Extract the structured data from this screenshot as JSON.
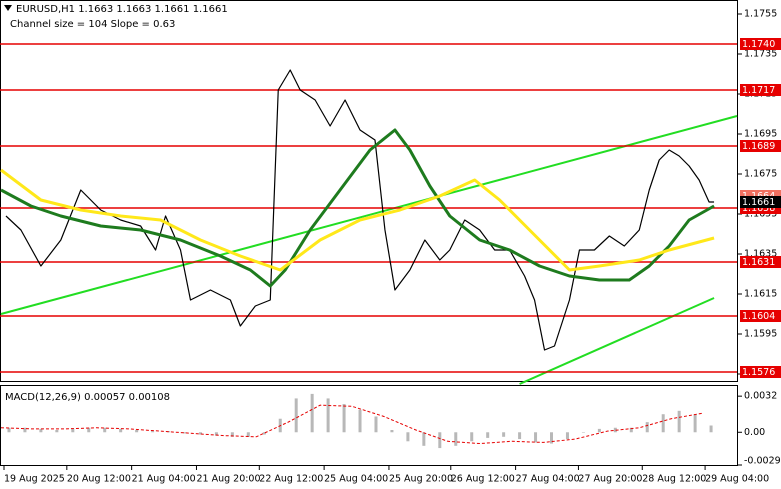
{
  "chart_data": [
    {
      "type": "line",
      "title": "EURUSD,H1  1.1663 1.1663 1.1661 1.1661",
      "subtitle": "Channel size = 104 Slope = 0.63",
      "xlim": [
        0,
        184.5
      ],
      "ylim": [
        1.15715,
        1.17615
      ],
      "yticks": [
        1.1755,
        1.1735,
        1.1715,
        1.1695,
        1.1675,
        1.1655,
        1.1635,
        1.1615,
        1.1595,
        1.1575
      ],
      "xticks": [
        {
          "value": 0.75,
          "label": "19 Aug 2025"
        },
        {
          "value": 16.5,
          "label": "20 Aug 12:00"
        },
        {
          "value": 32.75,
          "label": "21 Aug 04:00"
        },
        {
          "value": 49,
          "label": "21 Aug 20:00"
        },
        {
          "value": 64.75,
          "label": "22 Aug 12:00"
        },
        {
          "value": 81,
          "label": "25 Aug 04:00"
        },
        {
          "value": 97.25,
          "label": "25 Aug 20:00"
        },
        {
          "value": 112.75,
          "label": "26 Aug 12:00"
        },
        {
          "value": 129,
          "label": "27 Aug 04:00"
        },
        {
          "value": 144.75,
          "label": "27 Aug 20:00"
        },
        {
          "value": 160.75,
          "label": "28 Aug 12:00"
        },
        {
          "value": 176.5,
          "label": "29 Aug 04:00"
        }
      ],
      "series": [
        {
          "color": "#000000",
          "width": 1.2,
          "x": [
            1.25,
            5,
            10,
            15,
            20,
            25,
            30,
            35,
            38.75,
            41.25,
            45,
            47.5,
            52.5,
            57.5,
            60,
            63.75,
            67.5,
            69.5,
            72.5,
            75,
            78.75,
            82.5,
            86.25,
            90,
            93.75,
            96.25,
            98.75,
            102.5,
            106.25,
            110,
            112.5,
            116.25,
            120,
            123.75,
            127.5,
            131.25,
            133.75,
            136.25,
            138.75,
            142.5,
            145,
            148.75,
            152.5,
            156.25,
            160,
            162.5,
            165,
            167.5,
            170,
            172.5,
            175,
            177.5,
            178.75
          ],
          "values": [
            1.1654,
            1.1647,
            1.1629,
            1.1642,
            1.1667,
            1.1657,
            1.1652,
            1.1649,
            1.1637,
            1.1654,
            1.1637,
            1.1612,
            1.1617,
            1.1612,
            1.1599,
            1.1609,
            1.1612,
            1.1717,
            1.1727,
            1.1717,
            1.1712,
            1.1699,
            1.1712,
            1.1697,
            1.1692,
            1.1647,
            1.1617,
            1.1627,
            1.1642,
            1.1632,
            1.1637,
            1.1652,
            1.1647,
            1.1637,
            1.1637,
            1.1624,
            1.1612,
            1.1587,
            1.1589,
            1.1612,
            1.1637,
            1.1637,
            1.1644,
            1.1639,
            1.1647,
            1.1667,
            1.1682,
            1.1687,
            1.1684,
            1.1679,
            1.1672,
            1.1661,
            1.1661
          ]
        },
        {
          "color": "#1e7b1e",
          "width": 3,
          "x": [
            0,
            7.5,
            15,
            25,
            35,
            45,
            55,
            62.5,
            67.5,
            71.25,
            77.5,
            85,
            92.5,
            98.75,
            102.5,
            107.5,
            112.5,
            120,
            127.5,
            135,
            142.5,
            150,
            157.5,
            162.5,
            167.5,
            172.5,
            178.75
          ],
          "values": [
            1.1667,
            1.1659,
            1.1654,
            1.1649,
            1.1647,
            1.1642,
            1.1634,
            1.1627,
            1.1619,
            1.1627,
            1.1647,
            1.1667,
            1.1687,
            1.1697,
            1.1687,
            1.1669,
            1.1654,
            1.1642,
            1.1637,
            1.1629,
            1.1624,
            1.1622,
            1.1622,
            1.1629,
            1.1639,
            1.1652,
            1.1659
          ]
        },
        {
          "color": "#ffe81a",
          "width": 3,
          "x": [
            0,
            10,
            20,
            30,
            40,
            50,
            60,
            70,
            80,
            90,
            100,
            110,
            118.75,
            125,
            132.5,
            142.5,
            150,
            160,
            167.5,
            178.75
          ],
          "values": [
            1.1677,
            1.1662,
            1.1657,
            1.1654,
            1.1652,
            1.1642,
            1.1634,
            1.1627,
            1.1642,
            1.1652,
            1.1657,
            1.1664,
            1.1672,
            1.1662,
            1.1647,
            1.1627,
            1.1629,
            1.1632,
            1.1637,
            1.1643
          ]
        }
      ],
      "channel_color": "#22dd22",
      "channel_lines": [
        {
          "x": [
            0,
            184.5
          ],
          "values": [
            1.1605,
            1.1704
          ]
        },
        {
          "x": [
            130,
            178.75
          ],
          "values": [
            1.157,
            1.1613
          ]
        }
      ],
      "level_color": "#e60000",
      "levels": [
        {
          "value": 1.174,
          "label": "1.1740"
        },
        1.1717,
        1.1689,
        1.1658,
        1.1631,
        1.1604,
        1.1576
      ],
      "price_labels": [
        {
          "value": 1.1664,
          "color": "#f07060"
        },
        {
          "value": 1.1661,
          "color": "#000000"
        }
      ]
    },
    {
      "type": "bar",
      "title": "MACD(12,26,9) 0.00057 0.00108",
      "xlim": [
        0,
        184.5
      ],
      "ylim": [
        -0.0029,
        0.0041
      ],
      "yticks": [
        0.0032,
        {
          "value": 0,
          "label": "0.00"
        },
        -0.0029
      ],
      "color": "#b8b8b8",
      "x": [
        2,
        6,
        10,
        14,
        18,
        22,
        26,
        30,
        34,
        38,
        42,
        46,
        50,
        54,
        58,
        62,
        66,
        70,
        74,
        78,
        82,
        86,
        90,
        94,
        98,
        102,
        106,
        110,
        114,
        118,
        122,
        126,
        130,
        134,
        138,
        142,
        146,
        150,
        154,
        158,
        162,
        166,
        170,
        174,
        178
      ],
      "values": [
        0.0004,
        0.0004,
        0.0003,
        0.0002,
        0.0003,
        0.0004,
        0.0004,
        0.0003,
        0.0002,
        0.0001,
        0.0001,
        -0.0001,
        -0.0002,
        -0.0003,
        -0.0004,
        -0.0004,
        -0.0002,
        0.0012,
        0.003,
        0.0034,
        0.003,
        0.0025,
        0.002,
        0.0014,
        0.0002,
        -0.0008,
        -0.0012,
        -0.0014,
        -0.0012,
        -0.0008,
        -0.0005,
        -0.0004,
        -0.0006,
        -0.0009,
        -0.001,
        -0.0006,
        0,
        0.0003,
        0.0004,
        0.0004,
        0.0009,
        0.0016,
        0.0019,
        0.0016,
        0.0006
      ],
      "signal": {
        "color": "#e60000",
        "x": [
          0,
          8,
          16,
          24,
          32,
          40,
          48,
          56,
          64,
          72,
          80,
          88,
          96,
          104,
          112,
          120,
          128,
          136,
          144,
          152,
          160,
          168,
          176
        ],
        "values": [
          0.0004,
          0.0003,
          0.0003,
          0.0004,
          0.0003,
          0.0001,
          -0.0001,
          -0.0003,
          -0.0004,
          0.0009,
          0.0024,
          0.0023,
          0.0014,
          0.0002,
          -0.0008,
          -0.001,
          -0.0008,
          -0.0009,
          -0.0006,
          0.0001,
          0.0004,
          0.0012,
          0.0017
        ]
      }
    }
  ]
}
